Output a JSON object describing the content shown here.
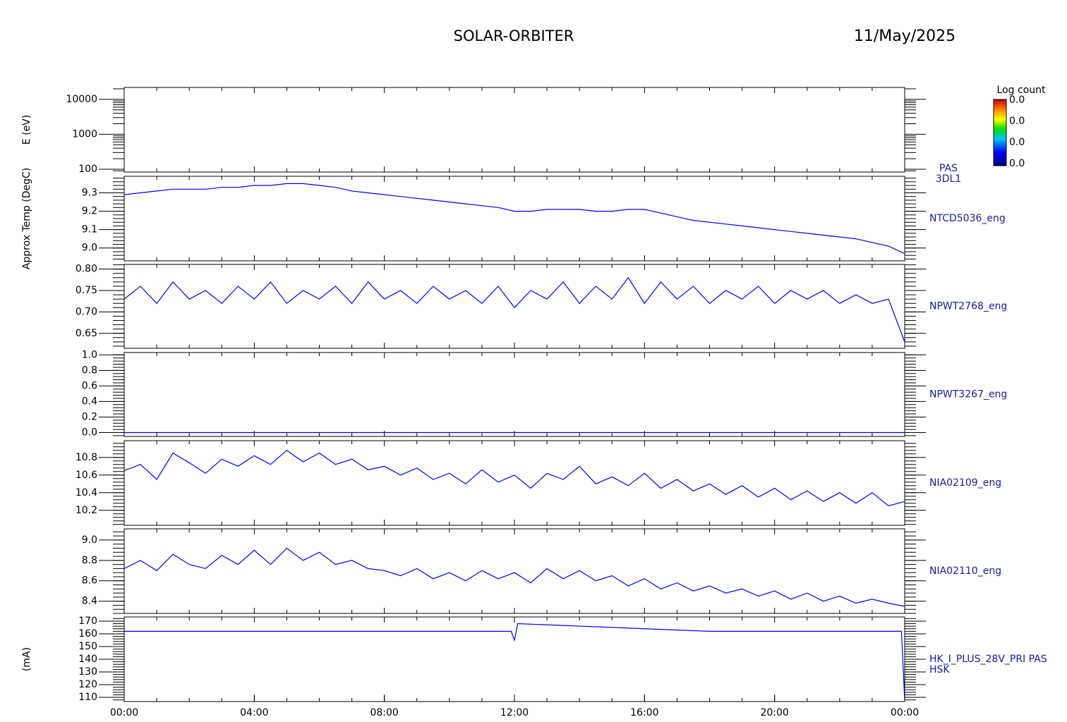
{
  "header": {
    "title": "SOLAR-ORBITER",
    "date": "11/May/2025"
  },
  "colorbar": {
    "label": "Log count",
    "tick_labels": [
      "0.0",
      "0.0",
      "0.0",
      "0.0"
    ]
  },
  "chart_data": [
    {
      "type": "spectrogram",
      "ylabel": "E (eV)",
      "labels": [
        "PAS",
        "3DL1"
      ],
      "ylog": true,
      "ylim": [
        83,
        21900
      ],
      "yticks": [
        100,
        1000,
        10000
      ],
      "xlim": [
        0,
        24
      ]
    },
    {
      "type": "line",
      "ylabel": "Approx Temp (DegC)",
      "labels": [
        "NTCD5036_eng"
      ],
      "color": "#0000ff",
      "ylim": [
        8.93,
        9.39
      ],
      "yticks": [
        {
          "value": 9,
          "label": "9.0"
        },
        9.1,
        9.2,
        9.3
      ],
      "xlim": [
        0,
        24
      ],
      "x": [
        0,
        0.5,
        1,
        1.5,
        2,
        2.5,
        3,
        3.5,
        4,
        4.5,
        5,
        5.5,
        6,
        6.5,
        7,
        7.5,
        8,
        8.5,
        9,
        9.5,
        10,
        10.5,
        11,
        11.5,
        12,
        12.5,
        13,
        13.5,
        14,
        14.5,
        15,
        15.5,
        16,
        16.5,
        17,
        17.5,
        18,
        18.5,
        19,
        19.5,
        20,
        20.5,
        21,
        21.5,
        22,
        22.5,
        23,
        23.5,
        24
      ],
      "values": [
        9.29,
        9.3,
        9.31,
        9.32,
        9.32,
        9.32,
        9.33,
        9.33,
        9.34,
        9.34,
        9.35,
        9.35,
        9.34,
        9.33,
        9.31,
        9.3,
        9.29,
        9.28,
        9.27,
        9.26,
        9.25,
        9.24,
        9.23,
        9.22,
        9.2,
        9.2,
        9.21,
        9.21,
        9.21,
        9.2,
        9.2,
        9.21,
        9.21,
        9.19,
        9.17,
        9.15,
        9.14,
        9.13,
        9.12,
        9.11,
        9.1,
        9.09,
        9.08,
        9.07,
        9.06,
        9.05,
        9.03,
        9.01,
        8.97
      ]
    },
    {
      "type": "line",
      "labels": [
        "NPWT2768_eng"
      ],
      "color": "#0000ff",
      "ylim": [
        0.615,
        0.811
      ],
      "yticks": [
        0.65,
        {
          "value": 0.7,
          "label": "0.70"
        },
        0.75,
        {
          "value": 0.8,
          "label": "0.80"
        }
      ],
      "xlim": [
        0,
        24
      ],
      "x": [
        0,
        0.5,
        1,
        1.5,
        2,
        2.5,
        3,
        3.5,
        4,
        4.5,
        5,
        5.5,
        6,
        6.5,
        7,
        7.5,
        8,
        8.5,
        9,
        9.5,
        10,
        10.5,
        11,
        11.5,
        12,
        12.5,
        13,
        13.5,
        14,
        14.5,
        15,
        15.5,
        16,
        16.5,
        17,
        17.5,
        18,
        18.5,
        19,
        19.5,
        20,
        20.5,
        21,
        21.5,
        22,
        22.5,
        23,
        23.5,
        24
      ],
      "values": [
        0.73,
        0.76,
        0.72,
        0.77,
        0.73,
        0.75,
        0.72,
        0.76,
        0.73,
        0.77,
        0.72,
        0.75,
        0.73,
        0.76,
        0.72,
        0.77,
        0.73,
        0.75,
        0.72,
        0.76,
        0.73,
        0.75,
        0.72,
        0.76,
        0.71,
        0.75,
        0.73,
        0.77,
        0.72,
        0.76,
        0.73,
        0.78,
        0.72,
        0.77,
        0.73,
        0.76,
        0.72,
        0.75,
        0.73,
        0.76,
        0.72,
        0.75,
        0.73,
        0.75,
        0.72,
        0.74,
        0.72,
        0.73,
        0.63
      ]
    },
    {
      "type": "line",
      "labels": [
        "NPWT3267_eng"
      ],
      "color": "#0000ff",
      "ylim": [
        -0.05,
        1.03
      ],
      "yticks": [
        {
          "value": 0,
          "label": "0.0"
        },
        0.2,
        0.4,
        0.6,
        0.8,
        {
          "value": 1,
          "label": "1.0"
        }
      ],
      "xlim": [
        0,
        24
      ],
      "x": [
        0,
        24
      ],
      "values": [
        0,
        0
      ]
    },
    {
      "type": "line",
      "labels": [
        "NIA02109_eng"
      ],
      "color": "#0000ff",
      "ylim": [
        10.03,
        10.99
      ],
      "yticks": [
        10.2,
        10.4,
        10.6,
        10.8
      ],
      "xlim": [
        0,
        24
      ],
      "x": [
        0,
        0.5,
        1,
        1.5,
        2,
        2.5,
        3,
        3.5,
        4,
        4.5,
        5,
        5.5,
        6,
        6.5,
        7,
        7.5,
        8,
        8.5,
        9,
        9.5,
        10,
        10.5,
        11,
        11.5,
        12,
        12.5,
        13,
        13.5,
        14,
        14.5,
        15,
        15.5,
        16,
        16.5,
        17,
        17.5,
        18,
        18.5,
        19,
        19.5,
        20,
        20.5,
        21,
        21.5,
        22,
        22.5,
        23,
        23.5,
        24
      ],
      "values": [
        10.65,
        10.72,
        10.55,
        10.85,
        10.74,
        10.62,
        10.78,
        10.7,
        10.82,
        10.72,
        10.88,
        10.75,
        10.85,
        10.72,
        10.78,
        10.66,
        10.7,
        10.6,
        10.68,
        10.55,
        10.62,
        10.5,
        10.66,
        10.52,
        10.6,
        10.45,
        10.62,
        10.55,
        10.7,
        10.5,
        10.58,
        10.48,
        10.62,
        10.45,
        10.55,
        10.42,
        10.5,
        10.38,
        10.48,
        10.35,
        10.45,
        10.32,
        10.42,
        10.3,
        10.4,
        10.28,
        10.4,
        10.25,
        10.3
      ]
    },
    {
      "type": "line",
      "labels": [
        "NIA02110_eng"
      ],
      "color": "#0000ff",
      "ylim": [
        8.28,
        9.11
      ],
      "yticks": [
        8.4,
        8.6,
        8.8,
        {
          "value": 9,
          "label": "9.0"
        }
      ],
      "xlim": [
        0,
        24
      ],
      "x": [
        0,
        0.5,
        1,
        1.5,
        2,
        2.5,
        3,
        3.5,
        4,
        4.5,
        5,
        5.5,
        6,
        6.5,
        7,
        7.5,
        8,
        8.5,
        9,
        9.5,
        10,
        10.5,
        11,
        11.5,
        12,
        12.5,
        13,
        13.5,
        14,
        14.5,
        15,
        15.5,
        16,
        16.5,
        17,
        17.5,
        18,
        18.5,
        19,
        19.5,
        20,
        20.5,
        21,
        21.5,
        22,
        22.5,
        23,
        23.5,
        24
      ],
      "values": [
        8.72,
        8.8,
        8.7,
        8.86,
        8.76,
        8.72,
        8.85,
        8.76,
        8.9,
        8.76,
        8.92,
        8.8,
        8.88,
        8.76,
        8.8,
        8.72,
        8.7,
        8.65,
        8.72,
        8.62,
        8.68,
        8.6,
        8.7,
        8.62,
        8.68,
        8.58,
        8.72,
        8.62,
        8.7,
        8.6,
        8.65,
        8.55,
        8.62,
        8.52,
        8.58,
        8.5,
        8.55,
        8.48,
        8.52,
        8.45,
        8.5,
        8.42,
        8.48,
        8.4,
        8.45,
        8.38,
        8.42,
        8.38,
        8.35
      ]
    },
    {
      "type": "line",
      "ylabel": "(mA)",
      "labels": [
        "HK_I_PLUS_28V_PRI PAS",
        "HSK"
      ],
      "color": "#0000ff",
      "ylim": [
        106.7,
        173.3
      ],
      "yticks": [
        110,
        120,
        130,
        140,
        150,
        160,
        170
      ],
      "xlim": [
        0,
        24
      ],
      "xticks": [
        {
          "value": 0,
          "label": "00:00"
        },
        {
          "value": 4,
          "label": "04:00"
        },
        {
          "value": 8,
          "label": "08:00"
        },
        {
          "value": 12,
          "label": "12:00"
        },
        {
          "value": 16,
          "label": "16:00"
        },
        {
          "value": 20,
          "label": "20:00"
        },
        {
          "value": 24,
          "label": "00:00"
        }
      ],
      "x": [
        0,
        6,
        11.9,
        12,
        12.1,
        18,
        23.9,
        24
      ],
      "values": [
        162,
        162,
        162,
        155,
        168,
        162,
        162,
        108
      ]
    }
  ]
}
